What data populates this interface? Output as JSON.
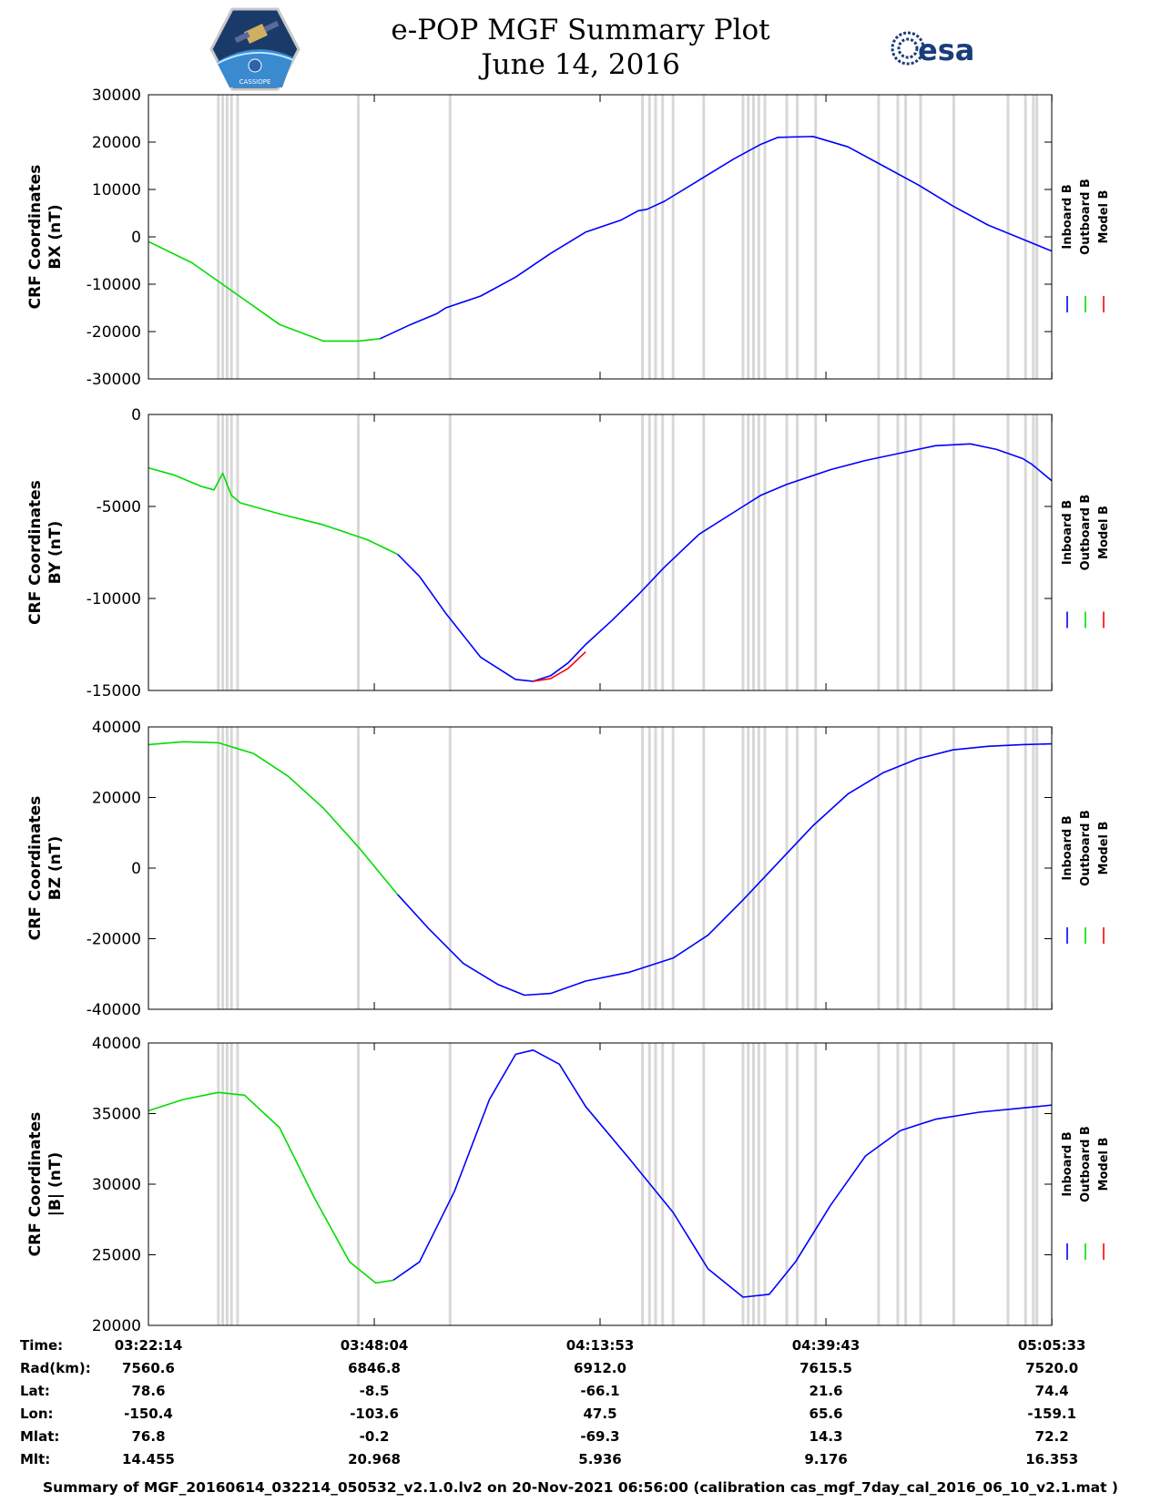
{
  "header": {
    "title_line1": "e-POP MGF Summary Plot",
    "title_line2": "June 14, 2016",
    "logo_left": "CASSIOPE",
    "logo_right": "esa"
  },
  "colors": {
    "inboard": "#0000ff",
    "outboard": "#00dd00",
    "model": "#ff0000",
    "shading": "#d8d8d8"
  },
  "chart_data": [
    {
      "type": "line",
      "panel": "BX",
      "ylabel_line1": "CRF Coordinates",
      "ylabel_line2": "BX (nT)",
      "ylim": [
        -30000,
        30000
      ],
      "yticks": [
        -30000,
        -20000,
        -10000,
        0,
        10000,
        20000,
        30000
      ],
      "legend": [
        "Inboard B",
        "Outboard B",
        "Model B"
      ],
      "series": [
        {
          "name": "Outboard B",
          "x": [
            0,
            5,
            10,
            15,
            20,
            24,
            26.5
          ],
          "y": [
            -1000,
            -5500,
            -12000,
            -18500,
            -22000,
            -22000,
            -21500
          ]
        },
        {
          "name": "Inboard B",
          "x": [
            26.5,
            30,
            33,
            34,
            38,
            42,
            46,
            50,
            54,
            56,
            57,
            59,
            63,
            67,
            70,
            72,
            76,
            80,
            84,
            88,
            92,
            96,
            103.3
          ],
          "y": [
            -21500,
            -18500,
            -16200,
            -15000,
            -12500,
            -8500,
            -3500,
            1000,
            3500,
            5500,
            5800,
            7500,
            12000,
            16500,
            19500,
            21000,
            21200,
            19000,
            15000,
            11000,
            6500,
            2500,
            -3000
          ]
        }
      ]
    },
    {
      "type": "line",
      "panel": "BY",
      "ylabel_line1": "CRF Coordinates",
      "ylabel_line2": "BY (nT)",
      "ylim": [
        -15000,
        0
      ],
      "yticks": [
        -15000,
        -10000,
        -5000,
        0
      ],
      "legend": [
        "Inboard B",
        "Outboard B",
        "Model B"
      ],
      "series": [
        {
          "name": "Outboard B",
          "x": [
            0,
            3,
            6,
            7.5,
            8.5,
            9.5,
            10.5,
            15,
            20,
            25,
            28.5
          ],
          "y": [
            -2900,
            -3300,
            -3900,
            -4100,
            -3200,
            -4400,
            -4800,
            -5400,
            -6000,
            -6800,
            -7600
          ]
        },
        {
          "name": "Inboard B",
          "x": [
            28.5,
            31,
            34,
            38,
            42,
            44,
            46,
            48,
            50,
            53,
            56,
            59,
            63,
            68,
            70,
            73,
            78,
            82,
            86,
            90,
            94,
            97,
            100,
            101,
            103.3
          ],
          "y": [
            -7600,
            -8800,
            -10800,
            -13200,
            -14400,
            -14500,
            -14200,
            -13500,
            -12500,
            -11200,
            -9800,
            -8300,
            -6500,
            -5000,
            -4400,
            -3800,
            -3000,
            -2500,
            -2100,
            -1700,
            -1600,
            -1900,
            -2400,
            -2700,
            -3600
          ]
        },
        {
          "name": "Model B",
          "x": [
            44,
            46,
            48,
            50
          ],
          "y": [
            -14500,
            -14350,
            -13800,
            -12900
          ]
        }
      ]
    },
    {
      "type": "line",
      "panel": "BZ",
      "ylabel_line1": "CRF Coordinates",
      "ylabel_line2": "BZ (nT)",
      "ylim": [
        -40000,
        40000
      ],
      "yticks": [
        -40000,
        -20000,
        0,
        20000,
        40000
      ],
      "legend": [
        "Inboard B",
        "Outboard B",
        "Model B"
      ],
      "series": [
        {
          "name": "Outboard B",
          "x": [
            0,
            4,
            8,
            12,
            16,
            20,
            24,
            28.5
          ],
          "y": [
            35000,
            35800,
            35500,
            32500,
            26000,
            17000,
            6000,
            -7500
          ]
        },
        {
          "name": "Inboard B",
          "x": [
            28.5,
            32,
            36,
            40,
            43,
            46,
            50,
            55,
            60,
            64,
            68,
            72,
            76,
            80,
            84,
            88,
            92,
            96,
            100,
            103.3
          ],
          "y": [
            -7500,
            -17000,
            -27000,
            -33000,
            -36000,
            -35500,
            -32000,
            -29500,
            -25500,
            -19000,
            -9000,
            1500,
            12000,
            21000,
            27000,
            31000,
            33500,
            34500,
            35000,
            35200
          ]
        }
      ]
    },
    {
      "type": "line",
      "panel": "|B|",
      "ylabel_line1": "CRF Coordinates",
      "ylabel_line2": "|B| (nT)",
      "ylim": [
        20000,
        40000
      ],
      "yticks": [
        20000,
        25000,
        30000,
        35000,
        40000
      ],
      "legend": [
        "Inboard B",
        "Outboard B",
        "Model B"
      ],
      "series": [
        {
          "name": "Outboard B",
          "x": [
            0,
            4,
            8,
            11,
            15,
            19,
            23,
            26,
            28
          ],
          "y": [
            35200,
            36000,
            36500,
            36300,
            34000,
            29000,
            24500,
            23000,
            23200
          ]
        },
        {
          "name": "Inboard B",
          "x": [
            28,
            31,
            35,
            39,
            42,
            44,
            47,
            50,
            55,
            60,
            64,
            68,
            71,
            74,
            78,
            82,
            86,
            90,
            95,
            100,
            103.3
          ],
          "y": [
            23200,
            24500,
            29500,
            36000,
            39200,
            39500,
            38500,
            35500,
            31800,
            28000,
            24000,
            22000,
            22200,
            24500,
            28500,
            32000,
            33800,
            34600,
            35100,
            35400,
            35600
          ]
        }
      ]
    }
  ],
  "shading_x": [
    8,
    8.5,
    9,
    9.5,
    10.2,
    24,
    34.5,
    56.5,
    57.3,
    58,
    58.8,
    60,
    63.5,
    68,
    68.6,
    69.2,
    69.8,
    70.5,
    73,
    74.2,
    76.3,
    83.5,
    85.7,
    86.6,
    88.3,
    92.1,
    98.3,
    100.3,
    101.2,
    101.6
  ],
  "xaxis": {
    "xlim": [
      0,
      103.3
    ],
    "ticks_min": [
      0,
      25.83,
      51.65,
      77.48,
      103.32
    ]
  },
  "info": {
    "rows": [
      {
        "label": "Time:",
        "values": [
          "03:22:14",
          "03:48:04",
          "04:13:53",
          "04:39:43",
          "05:05:33"
        ]
      },
      {
        "label": "Rad(km):",
        "values": [
          "7560.6",
          "6846.8",
          "6912.0",
          "7615.5",
          "7520.0"
        ]
      },
      {
        "label": "Lat:",
        "values": [
          "78.6",
          "-8.5",
          "-66.1",
          "21.6",
          "74.4"
        ]
      },
      {
        "label": "Lon:",
        "values": [
          "-150.4",
          "-103.6",
          "47.5",
          "65.6",
          "-159.1"
        ]
      },
      {
        "label": "Mlat:",
        "values": [
          "76.8",
          "-0.2",
          "-69.3",
          "14.3",
          "72.2"
        ]
      },
      {
        "label": "Mlt:",
        "values": [
          "14.455",
          "20.968",
          "5.936",
          "9.176",
          "16.353"
        ]
      }
    ]
  },
  "footer": "Summary of MGF_20160614_032214_050532_v2.1.0.lv2 on 20-Nov-2021 06:56:00 (calibration cas_mgf_7day_cal_2016_06_10_v2.1.mat )"
}
